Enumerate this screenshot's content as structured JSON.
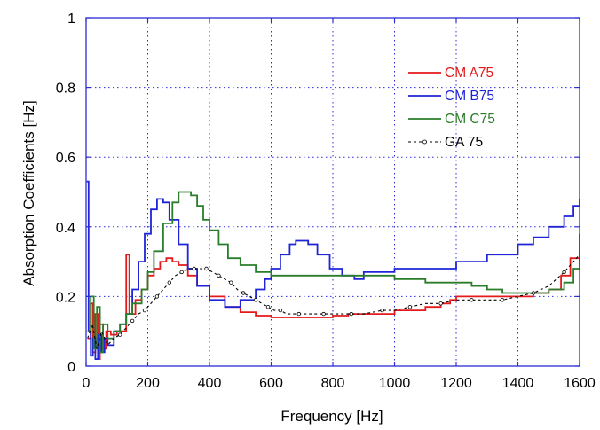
{
  "chart_data": {
    "type": "line",
    "xlabel": "Frequency [Hz]",
    "ylabel": "Absorption Coefficients [Hz]",
    "xlim": [
      0,
      1600
    ],
    "ylim": [
      0,
      1
    ],
    "xticks": [
      "0",
      "200",
      "400",
      "600",
      "800",
      "1000",
      "1200",
      "1400",
      "1600"
    ],
    "yticks": [
      "0",
      "0.2",
      "0.4",
      "0.6",
      "0.8",
      "1"
    ],
    "grid": true,
    "legend_position": "upper-right",
    "series": [
      {
        "name": "CM A75",
        "color": "#e41a1c",
        "style": "step",
        "x": [
          5,
          15,
          22,
          30,
          38,
          45,
          55,
          65,
          80,
          100,
          125,
          130,
          140,
          160,
          180,
          200,
          220,
          240,
          260,
          270,
          280,
          300,
          330,
          360,
          400,
          450,
          500,
          550,
          600,
          650,
          700,
          750,
          800,
          850,
          900,
          1000,
          1100,
          1150,
          1180,
          1200,
          1250,
          1300,
          1350,
          1400,
          1450,
          1500,
          1540,
          1570,
          1600
        ],
        "y": [
          0.08,
          0.18,
          0.04,
          0.15,
          0.02,
          0.12,
          0.05,
          0.1,
          0.09,
          0.1,
          0.1,
          0.32,
          0.15,
          0.19,
          0.22,
          0.26,
          0.28,
          0.3,
          0.31,
          0.31,
          0.3,
          0.29,
          0.26,
          0.23,
          0.2,
          0.17,
          0.155,
          0.145,
          0.14,
          0.14,
          0.14,
          0.14,
          0.145,
          0.15,
          0.15,
          0.16,
          0.17,
          0.18,
          0.19,
          0.2,
          0.2,
          0.2,
          0.2,
          0.2,
          0.21,
          0.22,
          0.26,
          0.31,
          0.38
        ]
      },
      {
        "name": "CM B75",
        "color": "#1f25d6",
        "style": "step",
        "x": [
          2,
          8,
          15,
          22,
          30,
          40,
          50,
          60,
          70,
          90,
          110,
          130,
          150,
          170,
          190,
          210,
          230,
          250,
          270,
          300,
          330,
          360,
          400,
          450,
          500,
          550,
          580,
          600,
          630,
          660,
          680,
          700,
          720,
          750,
          790,
          830,
          870,
          900,
          1000,
          1100,
          1200,
          1300,
          1400,
          1450,
          1500,
          1550,
          1580,
          1600
        ],
        "y": [
          0.53,
          0.1,
          0.03,
          0.08,
          0.02,
          0.09,
          0.04,
          0.08,
          0.06,
          0.1,
          0.12,
          0.15,
          0.22,
          0.3,
          0.38,
          0.45,
          0.48,
          0.47,
          0.42,
          0.35,
          0.28,
          0.23,
          0.19,
          0.17,
          0.19,
          0.22,
          0.25,
          0.28,
          0.32,
          0.35,
          0.36,
          0.36,
          0.35,
          0.32,
          0.28,
          0.26,
          0.25,
          0.27,
          0.28,
          0.28,
          0.3,
          0.32,
          0.35,
          0.37,
          0.4,
          0.43,
          0.46,
          0.48
        ]
      },
      {
        "name": "CM C75",
        "color": "#2a7d2a",
        "style": "step",
        "x": [
          5,
          15,
          25,
          35,
          45,
          55,
          70,
          90,
          110,
          130,
          150,
          180,
          200,
          220,
          250,
          280,
          300,
          320,
          340,
          360,
          380,
          400,
          430,
          460,
          500,
          550,
          600,
          700,
          800,
          900,
          1000,
          1100,
          1200,
          1250,
          1300,
          1350,
          1400,
          1450,
          1500,
          1550,
          1580,
          1600
        ],
        "y": [
          0.1,
          0.2,
          0.05,
          0.17,
          0.04,
          0.12,
          0.08,
          0.1,
          0.12,
          0.15,
          0.18,
          0.22,
          0.27,
          0.33,
          0.41,
          0.47,
          0.5,
          0.5,
          0.49,
          0.46,
          0.42,
          0.39,
          0.35,
          0.31,
          0.29,
          0.27,
          0.26,
          0.26,
          0.26,
          0.26,
          0.25,
          0.24,
          0.24,
          0.23,
          0.22,
          0.21,
          0.21,
          0.21,
          0.22,
          0.24,
          0.28,
          0.33
        ]
      },
      {
        "name": "GA 75",
        "color": "#000000",
        "style": "dashed-markers",
        "x": [
          5,
          20,
          35,
          50,
          70,
          90,
          110,
          130,
          150,
          170,
          190,
          210,
          230,
          250,
          270,
          290,
          310,
          330,
          350,
          370,
          390,
          410,
          430,
          450,
          470,
          490,
          510,
          530,
          550,
          570,
          590,
          610,
          630,
          650,
          690,
          730,
          770,
          810,
          860,
          900,
          960,
          1000,
          1050,
          1100,
          1150,
          1200,
          1250,
          1300,
          1350,
          1400,
          1450,
          1500,
          1550,
          1600
        ],
        "y": [
          0.08,
          0.12,
          0.05,
          0.1,
          0.06,
          0.08,
          0.09,
          0.11,
          0.13,
          0.15,
          0.16,
          0.18,
          0.2,
          0.22,
          0.24,
          0.26,
          0.27,
          0.28,
          0.28,
          0.28,
          0.28,
          0.27,
          0.26,
          0.25,
          0.24,
          0.22,
          0.21,
          0.2,
          0.19,
          0.18,
          0.17,
          0.16,
          0.16,
          0.15,
          0.15,
          0.15,
          0.15,
          0.15,
          0.15,
          0.15,
          0.16,
          0.16,
          0.17,
          0.18,
          0.18,
          0.19,
          0.19,
          0.19,
          0.19,
          0.2,
          0.21,
          0.23,
          0.27,
          0.32
        ]
      }
    ]
  }
}
